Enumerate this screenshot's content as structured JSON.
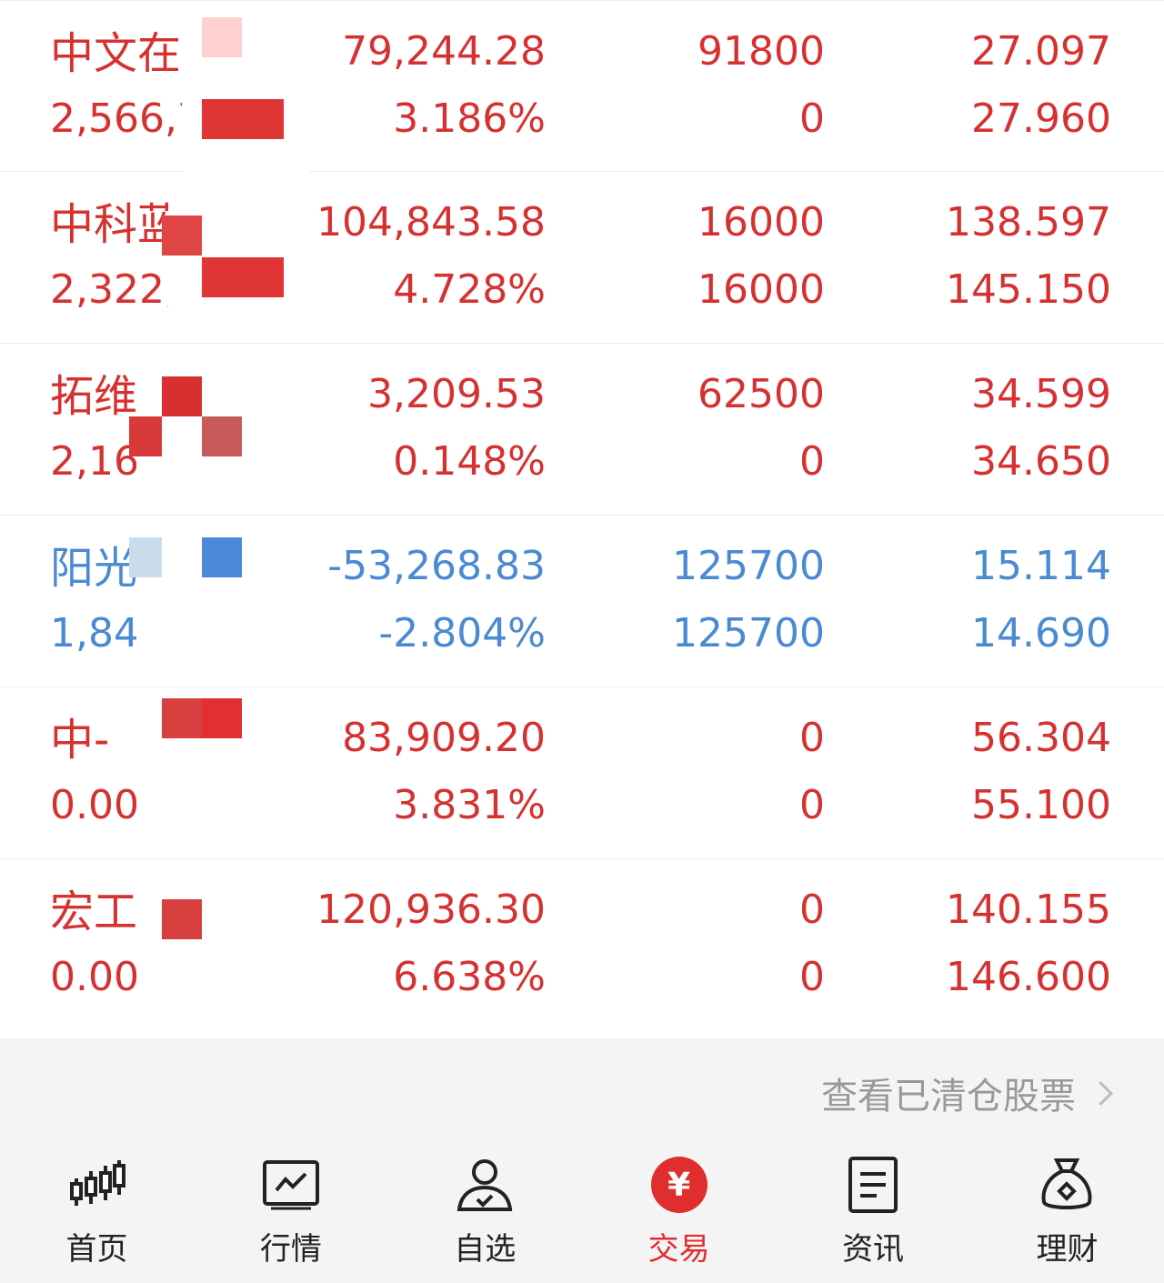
{
  "holdings": [
    {
      "name": "中文在",
      "market_value": "2,566,7",
      "pnl": "79,244.28",
      "pnl_pct": "3.186%",
      "position": "91800",
      "available": "0",
      "cost": "27.097",
      "price": "27.960",
      "trend": "up"
    },
    {
      "name": "中科蓝",
      "market_value": "2,322,",
      "pnl": "104,843.58",
      "pnl_pct": "4.728%",
      "position": "16000",
      "available": "16000",
      "cost": "138.597",
      "price": "145.150",
      "trend": "up"
    },
    {
      "name": "拓维",
      "market_value": "2,16",
      "pnl": "3,209.53",
      "pnl_pct": "0.148%",
      "position": "62500",
      "available": "0",
      "cost": "34.599",
      "price": "34.650",
      "trend": "up"
    },
    {
      "name": "阳光",
      "market_value": "1,84",
      "pnl": "-53,268.83",
      "pnl_pct": "-2.804%",
      "position": "125700",
      "available": "125700",
      "cost": "15.114",
      "price": "14.690",
      "trend": "down"
    },
    {
      "name": "中-",
      "market_value": "0.00",
      "pnl": "83,909.20",
      "pnl_pct": "3.831%",
      "position": "0",
      "available": "0",
      "cost": "56.304",
      "price": "55.100",
      "trend": "up"
    },
    {
      "name": "宏工",
      "market_value": "0.00",
      "pnl": "120,936.30",
      "pnl_pct": "6.638%",
      "position": "0",
      "available": "0",
      "cost": "140.155",
      "price": "146.600",
      "trend": "up"
    }
  ],
  "footer": {
    "cleared_link": "查看已清仓股票"
  },
  "tabs": [
    {
      "label": "首页",
      "icon": "candlestick-icon"
    },
    {
      "label": "行情",
      "icon": "chart-icon"
    },
    {
      "label": "自选",
      "icon": "user-check-icon"
    },
    {
      "label": "交易",
      "icon": "yen-icon",
      "glyph": "¥"
    },
    {
      "label": "资讯",
      "icon": "news-icon"
    },
    {
      "label": "理财",
      "icon": "money-bag-icon"
    }
  ],
  "colors": {
    "up": "#d63131",
    "down": "#4a8ad3",
    "active": "#e02e2e"
  }
}
